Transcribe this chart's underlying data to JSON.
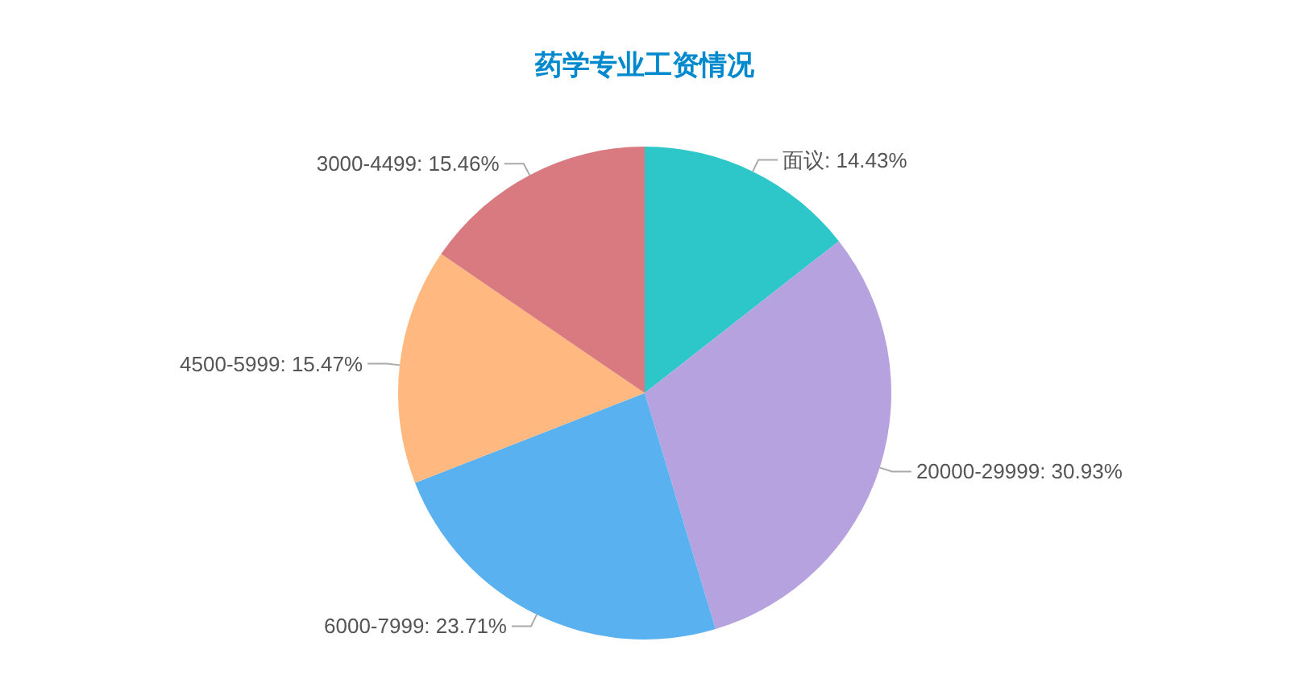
{
  "chart_data": {
    "type": "pie",
    "title": "药学专业工资情况",
    "categories": [
      "面议",
      "20000-29999",
      "6000-7999",
      "4500-5999",
      "3000-4499"
    ],
    "values": [
      14.43,
      30.93,
      23.71,
      15.47,
      15.46
    ],
    "colors": [
      "#2ec7c9",
      "#b6a2de",
      "#5ab1ef",
      "#ffb980",
      "#d87a80"
    ],
    "value_labels": [
      "14.43%",
      "30.93%",
      "23.71%",
      "15.47%",
      "15.46%"
    ]
  }
}
